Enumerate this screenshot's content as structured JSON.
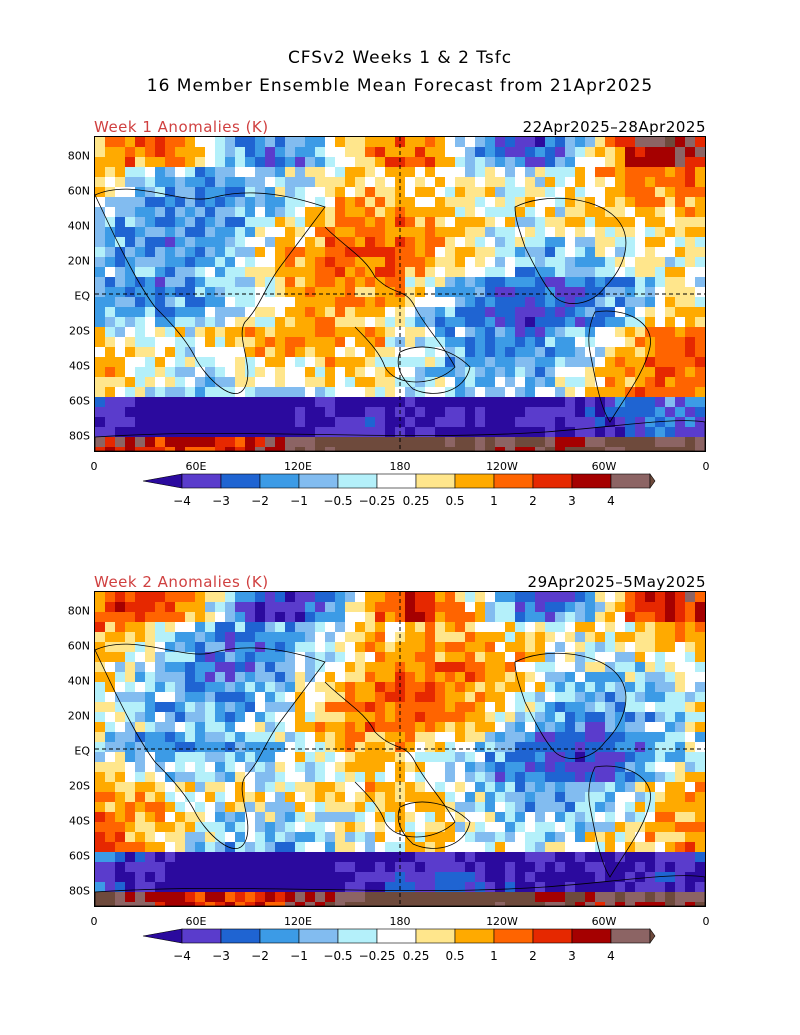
{
  "title": {
    "line1": "CFSv2 Weeks 1 & 2 Tsfc",
    "line2": "16 Member Ensemble Mean Forecast from 21Apr2025"
  },
  "panels": [
    {
      "title_left": "Week 1 Anomalies (K)",
      "title_right": "22Apr2025–28Apr2025"
    },
    {
      "title_left": "Week 2 Anomalies (K)",
      "title_right": "29Apr2025–5May2025"
    }
  ],
  "map": {
    "lat_labels": [
      "80N",
      "60N",
      "40N",
      "20N",
      "EQ",
      "20S",
      "40S",
      "60S",
      "80S"
    ],
    "lon_labels": [
      "0",
      "60E",
      "120E",
      "180",
      "120W",
      "60W",
      "0"
    ]
  },
  "colorbar": {
    "labels": [
      "−4",
      "−3",
      "−2",
      "−1",
      "−0.5",
      "−0.25",
      "0.25",
      "0.5",
      "1",
      "2",
      "3",
      "4"
    ],
    "colors": [
      "#2b0a9e",
      "#5a3ccc",
      "#1f64d2",
      "#3c9be6",
      "#82bcf0",
      "#b4f0fa",
      "#ffffff",
      "#ffe68c",
      "#ffaa00",
      "#ff6400",
      "#e62800",
      "#a50000",
      "#8c6464",
      "#6e4a3c"
    ]
  }
}
